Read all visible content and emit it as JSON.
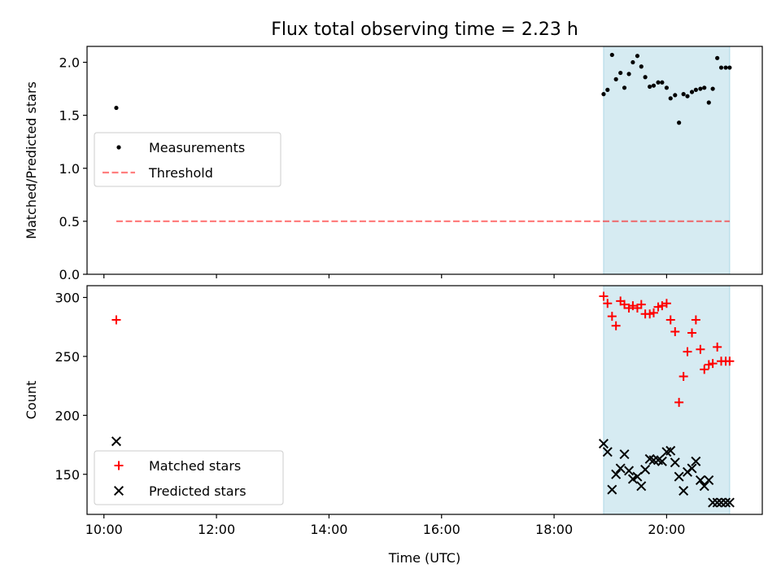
{
  "title": "Flux total observing time = 2.23 h",
  "colors": {
    "shade": "#add8e6",
    "measurement": "#000000",
    "threshold": "#ff0000",
    "matched": "#ff0000",
    "predicted": "#000000"
  },
  "chart_data": [
    {
      "type": "scatter",
      "ylabel": "Matched/Predicted stars",
      "xlabel": "",
      "xlim": [
        9.7,
        21.7
      ],
      "ylim": [
        0.0,
        2.15
      ],
      "grid": false,
      "legend_position": "center-left",
      "yticks": [
        0.0,
        0.5,
        1.0,
        1.5,
        2.0
      ],
      "ytick_labels": [
        "0.0",
        "0.5",
        "1.0",
        "1.5",
        "2.0"
      ],
      "shaded_span": [
        18.88,
        21.12
      ],
      "series": [
        {
          "name": "Measurements",
          "marker": "dot",
          "x": [
            10.22,
            18.88,
            18.95,
            19.03,
            19.1,
            19.18,
            19.25,
            19.33,
            19.4,
            19.48,
            19.55,
            19.62,
            19.7,
            19.77,
            19.85,
            19.92,
            20.0,
            20.07,
            20.15,
            20.22,
            20.3,
            20.37,
            20.45,
            20.52,
            20.6,
            20.67,
            20.75,
            20.82,
            20.9,
            20.97,
            21.05,
            21.12
          ],
          "y": [
            1.57,
            1.7,
            1.74,
            2.07,
            1.84,
            1.9,
            1.76,
            1.89,
            2.0,
            2.06,
            1.96,
            1.86,
            1.77,
            1.78,
            1.81,
            1.81,
            1.76,
            1.66,
            1.69,
            1.43,
            1.7,
            1.68,
            1.72,
            1.74,
            1.75,
            1.76,
            1.62,
            1.75,
            2.04,
            1.95,
            1.95,
            1.95
          ]
        },
        {
          "name": "Threshold",
          "style": "dashed",
          "x": [
            10.22,
            21.12
          ],
          "y": [
            0.5,
            0.5
          ]
        }
      ]
    },
    {
      "type": "scatter",
      "ylabel": "Count",
      "xlabel": "Time (UTC)",
      "xlim": [
        9.7,
        21.7
      ],
      "ylim": [
        116,
        310
      ],
      "grid": false,
      "legend_position": "lower-left",
      "xticks": [
        10,
        12,
        14,
        16,
        18,
        20
      ],
      "xtick_labels": [
        "10:00",
        "12:00",
        "14:00",
        "16:00",
        "18:00",
        "20:00"
      ],
      "yticks": [
        150,
        200,
        250,
        300
      ],
      "ytick_labels": [
        "150",
        "200",
        "250",
        "300"
      ],
      "shaded_span": [
        18.88,
        21.12
      ],
      "series": [
        {
          "name": "Matched stars",
          "marker": "plus",
          "x": [
            10.22,
            18.88,
            18.95,
            19.03,
            19.1,
            19.18,
            19.25,
            19.33,
            19.4,
            19.48,
            19.55,
            19.62,
            19.7,
            19.77,
            19.85,
            19.92,
            20.0,
            20.07,
            20.15,
            20.22,
            20.3,
            20.37,
            20.45,
            20.52,
            20.6,
            20.67,
            20.75,
            20.82,
            20.9,
            20.97,
            21.05,
            21.12
          ],
          "y": [
            281,
            301,
            295,
            284,
            276,
            297,
            294,
            291,
            293,
            291,
            294,
            286,
            286,
            287,
            292,
            293,
            295,
            281,
            271,
            211,
            233,
            254,
            270,
            281,
            256,
            239,
            243,
            244,
            258,
            246,
            246,
            246
          ]
        },
        {
          "name": "Predicted stars",
          "marker": "x",
          "x": [
            10.22,
            18.88,
            18.95,
            19.03,
            19.1,
            19.18,
            19.25,
            19.33,
            19.4,
            19.48,
            19.55,
            19.62,
            19.7,
            19.77,
            19.85,
            19.92,
            20.0,
            20.07,
            20.15,
            20.22,
            20.3,
            20.37,
            20.45,
            20.52,
            20.6,
            20.67,
            20.75,
            20.82,
            20.9,
            20.97,
            21.05,
            21.12
          ],
          "y": [
            178,
            176,
            169,
            137,
            150,
            155,
            167,
            153,
            146,
            148,
            140,
            154,
            163,
            162,
            162,
            161,
            169,
            170,
            160,
            148,
            136,
            152,
            155,
            161,
            145,
            140,
            145,
            126,
            126,
            126,
            126,
            126
          ]
        }
      ]
    }
  ]
}
